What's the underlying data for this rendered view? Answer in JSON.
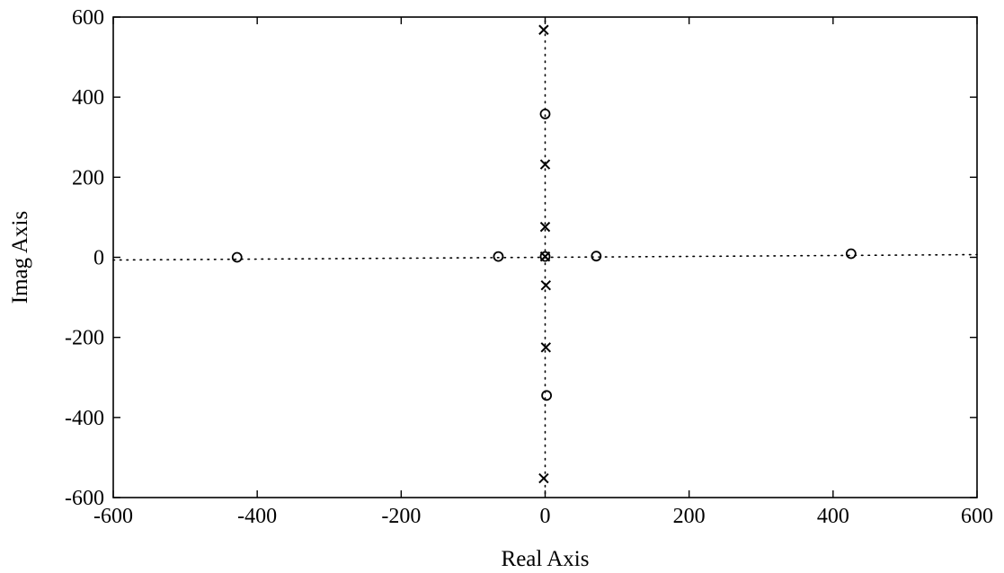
{
  "chart_data": {
    "type": "scatter",
    "title": "",
    "xlabel": "Real Axis",
    "ylabel": "Imag Axis",
    "xlim": [
      -600,
      600
    ],
    "ylim": [
      -600,
      600
    ],
    "xticks": [
      -600,
      -400,
      -200,
      0,
      200,
      400,
      600
    ],
    "yticks": [
      -600,
      -400,
      -200,
      0,
      200,
      400,
      600
    ],
    "grid": false,
    "reference_lines": [
      {
        "orientation": "horizontal",
        "at": 0,
        "style": "dotted"
      },
      {
        "orientation": "vertical",
        "at": 0,
        "style": "dotted"
      }
    ],
    "series": [
      {
        "marker": "x",
        "points": [
          {
            "x": -2,
            "y": 568
          },
          {
            "x": 0,
            "y": 232
          },
          {
            "x": 0,
            "y": 76
          },
          {
            "x": 0,
            "y": 2
          },
          {
            "x": 1,
            "y": -70
          },
          {
            "x": 1,
            "y": -225
          },
          {
            "x": -2,
            "y": -552
          }
        ]
      },
      {
        "marker": "o",
        "points": [
          {
            "x": -428,
            "y": 0
          },
          {
            "x": -65,
            "y": 2
          },
          {
            "x": 0,
            "y": 2
          },
          {
            "x": 71,
            "y": 3
          },
          {
            "x": 425,
            "y": 9
          },
          {
            "x": 0,
            "y": 358
          },
          {
            "x": 2,
            "y": -345
          }
        ]
      }
    ]
  }
}
